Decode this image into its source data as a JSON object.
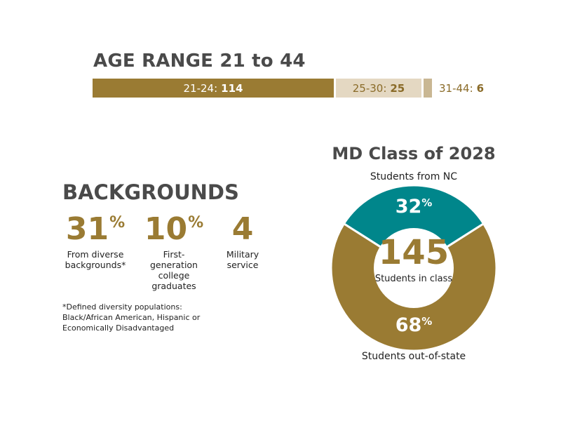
{
  "age_range": {
    "title": "AGE RANGE 21 to 44",
    "segments": [
      {
        "label": "21-24:",
        "value": "114",
        "count": 114,
        "color": "#9a7b33"
      },
      {
        "label": "25-30:",
        "value": "25",
        "count": 25,
        "color": "#e4d8c2"
      },
      {
        "label": "31-44:",
        "value": "6",
        "count": 6,
        "color": "#c9b793"
      }
    ]
  },
  "backgrounds": {
    "title": "BACKGROUNDS",
    "stats": [
      {
        "number": "31",
        "suffix": "%",
        "label": "From diverse backgrounds*"
      },
      {
        "number": "10",
        "suffix": "%",
        "label": "First-generation college graduates"
      },
      {
        "number": "4",
        "suffix": "",
        "label": "Military service"
      }
    ],
    "footnote": "*Defined diversity populations: Black/African American, Hispanic or Economically Disadvantaged"
  },
  "md_class": {
    "title": "MD Class of 2028",
    "total": "145",
    "total_label": "Students in class",
    "slices": [
      {
        "name": "Students from NC",
        "number": "32",
        "suffix": "%",
        "percent": 32,
        "color": "#00868b"
      },
      {
        "name": "Students out-of-state",
        "number": "68",
        "suffix": "%",
        "percent": 68,
        "color": "#9a7b33"
      }
    ]
  },
  "chart_data": [
    {
      "type": "bar",
      "title": "AGE RANGE 21 to 44",
      "categories": [
        "21-24",
        "25-30",
        "31-44"
      ],
      "values": [
        114,
        25,
        6
      ]
    },
    {
      "type": "pie",
      "title": "MD Class of 2028",
      "categories": [
        "Students from NC",
        "Students out-of-state"
      ],
      "values": [
        32,
        68
      ],
      "center_value": 145,
      "center_label": "Students in class"
    }
  ]
}
